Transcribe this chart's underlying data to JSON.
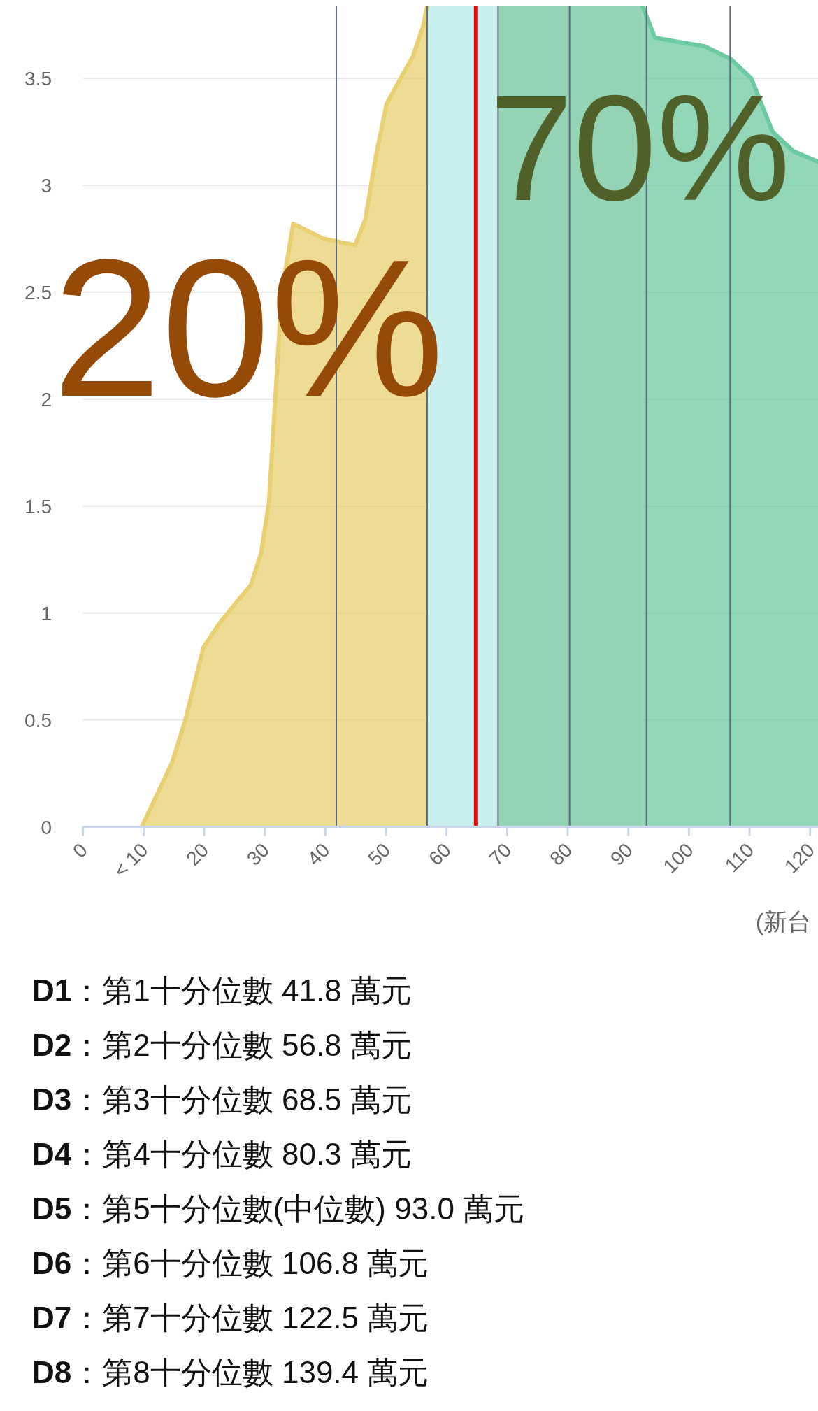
{
  "chart_data": {
    "type": "area",
    "xlabel": "(新台",
    "xlim": [
      0,
      121.3
    ],
    "ylim": [
      0,
      3.84
    ],
    "xticks": [
      0,
      {
        "value": 10,
        "label": "< 10"
      },
      20,
      30,
      40,
      50,
      60,
      70,
      80,
      90,
      100,
      110,
      120
    ],
    "yticks": [
      0,
      0.5,
      1,
      1.5,
      2,
      2.5,
      3,
      3.5
    ],
    "grid": "y",
    "series": [
      {
        "color": "#e8d070",
        "x": [
          9.7,
          14.7,
          16.9,
          19.9,
          22.5,
          25.9,
          27.7,
          29.4,
          30.7,
          32.8,
          34.7,
          39.7,
          44.9,
          46.6,
          48.3,
          50.1,
          52.6,
          54.4,
          56.1,
          56.8
        ],
        "values": [
          0,
          0.3,
          0.5,
          0.84,
          0.95,
          1.07,
          1.13,
          1.28,
          1.52,
          2.5,
          2.82,
          2.75,
          2.72,
          2.84,
          3.13,
          3.38,
          3.51,
          3.6,
          3.74,
          3.84
        ]
      },
      {
        "color": "#6ccaa0",
        "x": [
          92.3,
          94.4,
          98.3,
          102.6,
          106.9,
          110.3,
          113.8,
          117.2,
          121.3
        ],
        "values": [
          3.84,
          3.69,
          3.67,
          3.65,
          3.59,
          3.5,
          3.25,
          3.16,
          3.11
        ]
      }
    ],
    "bands": [
      {
        "axis": "x",
        "from": 56.8,
        "to": 68.5,
        "color": "#c8f0ee"
      },
      {
        "axis": "x",
        "from": 68.5,
        "to": 92.3,
        "color": "#94d4b4"
      }
    ],
    "ref_lines": [
      {
        "axis": "x",
        "value": 41.8,
        "color": "#5f6b80"
      },
      {
        "axis": "x",
        "value": 56.8,
        "color": "#5f6b80"
      },
      {
        "axis": "x",
        "value": 68.5,
        "color": "#5f6b80"
      },
      {
        "axis": "x",
        "value": 80.3,
        "color": "#5f6b80"
      },
      {
        "axis": "x",
        "value": 93.0,
        "color": "#5f6b80"
      },
      {
        "axis": "x",
        "value": 106.8,
        "color": "#5f6b80"
      },
      {
        "axis": "x",
        "value": 64.8,
        "color": "#ff0000"
      }
    ],
    "annotations": [
      "20%",
      "70%",
      "D1：第1十分位數 41.8 萬元",
      "D2：第2十分位數 56.8 萬元",
      "D3：第3十分位數 68.5 萬元",
      "D4：第4十分位數 80.3 萬元",
      "D5：第5十分位數(中位數) 93.0 萬元",
      "D6：第6十分位數 106.8 萬元",
      "D7：第7十分位數 122.5 萬元",
      "D8：第8十分位數 139.4 萬元"
    ]
  }
}
